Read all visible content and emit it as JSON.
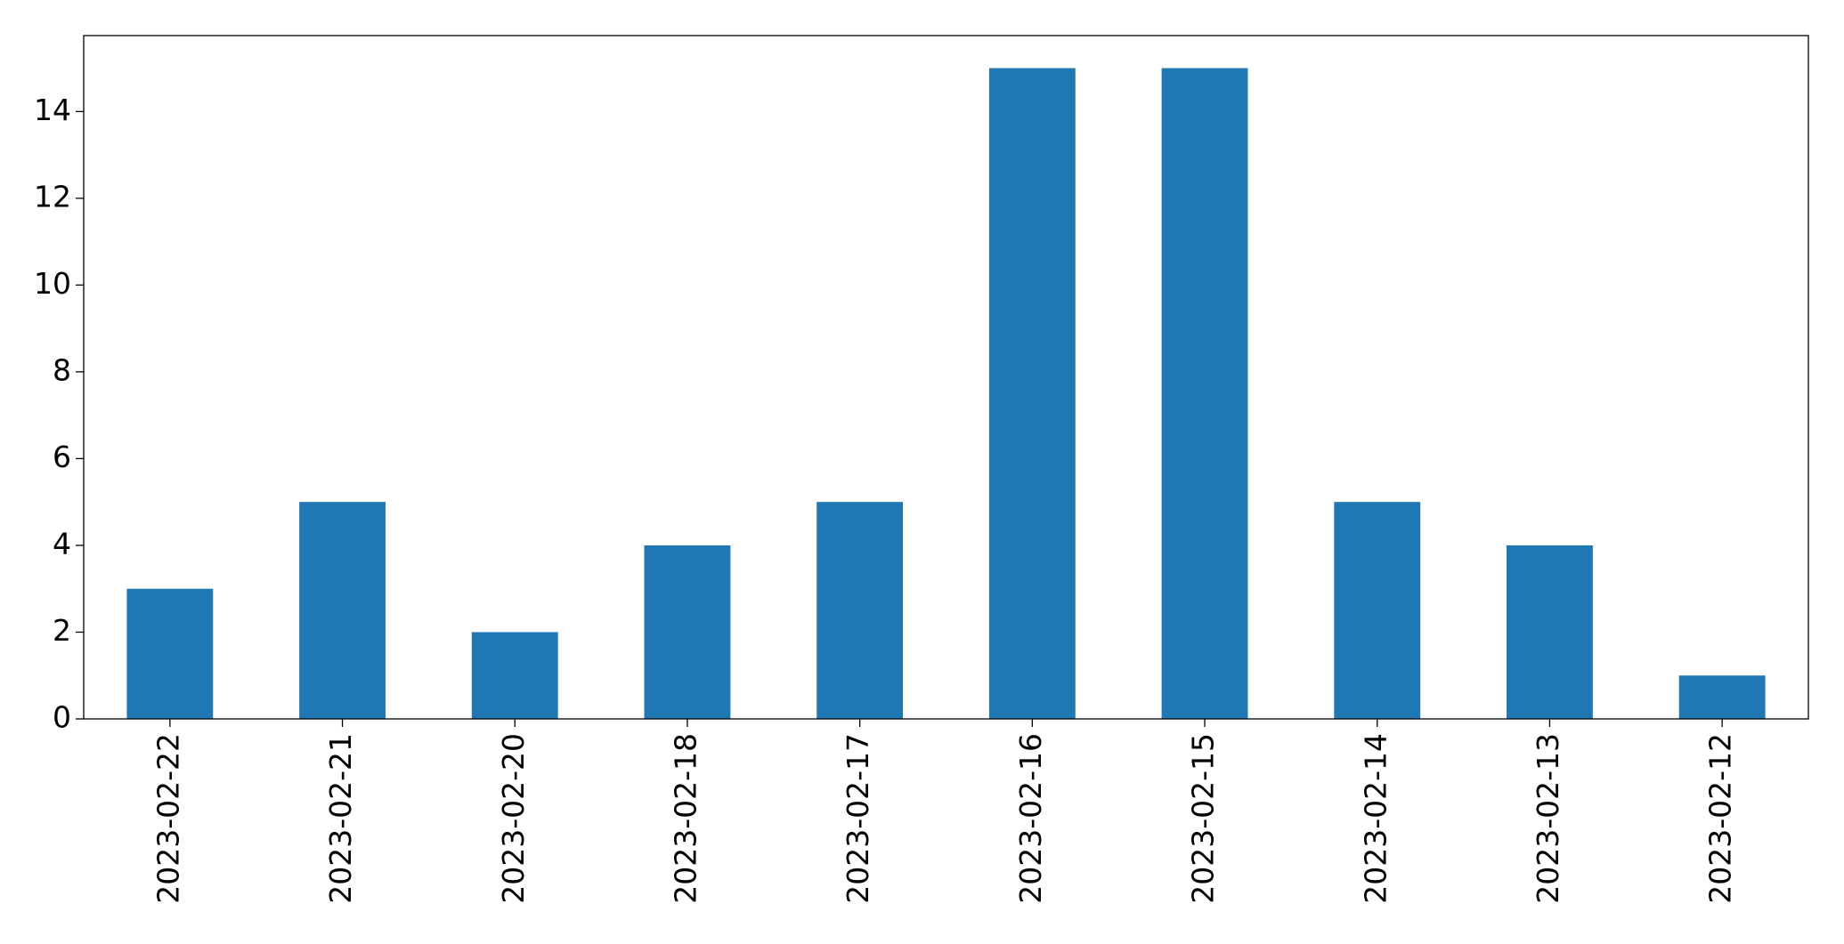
{
  "chart_data": {
    "type": "bar",
    "categories": [
      "2023-02-22",
      "2023-02-21",
      "2023-02-20",
      "2023-02-18",
      "2023-02-17",
      "2023-02-16",
      "2023-02-15",
      "2023-02-14",
      "2023-02-13",
      "2023-02-12"
    ],
    "values": [
      3,
      5,
      2,
      4,
      5,
      15,
      15,
      5,
      4,
      1
    ],
    "color": "#1f77b4",
    "ylim": [
      0,
      15.75
    ],
    "yticks": [
      0,
      2,
      4,
      6,
      8,
      10,
      12,
      14
    ],
    "grid": false
  }
}
